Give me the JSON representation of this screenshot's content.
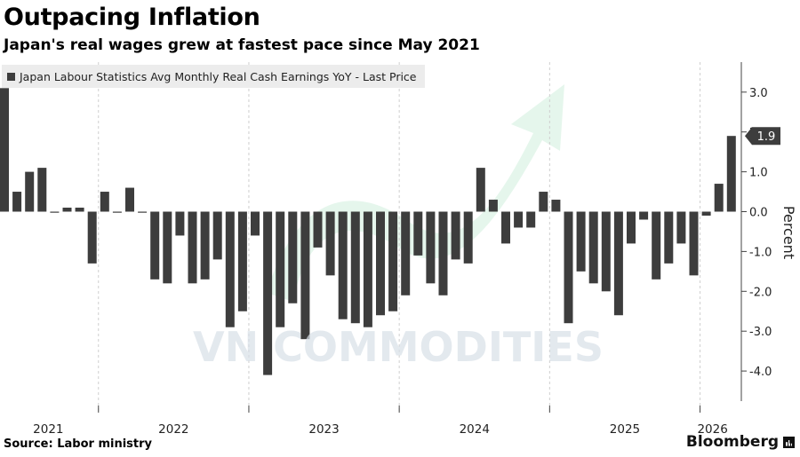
{
  "header": {
    "title": "Outpacing Inflation",
    "subtitle": "Japan's real wages grew at fastest pace since May 2021"
  },
  "legend": {
    "label": "Japan Labour Statistics Avg Monthly Real Cash Earnings YoY - Last Price"
  },
  "footer": {
    "source": "Source: Labor ministry",
    "brand": "Bloomberg"
  },
  "watermark": {
    "text": "VN COMMODITIES"
  },
  "colors": {
    "bar": "#3d3d3d",
    "axis": "#444444",
    "gridline": "#cfcfcf",
    "callout_bg": "#3d3d3d",
    "callout_text": "#ffffff",
    "watermark_text": "#d8e0e8",
    "watermark_arrow": "#cfeedd"
  },
  "chart_data": {
    "type": "bar",
    "title": "Outpacing Inflation",
    "subtitle": "Japan's real wages grew at fastest pace since May 2021",
    "ylabel": "Percent",
    "ylim": [
      -4.6,
      3.5
    ],
    "y_axis_side": "right",
    "y_ticks": [
      3.0,
      2.0,
      1.0,
      0.0,
      -1.0,
      -2.0,
      -3.0,
      -4.0
    ],
    "y_tick_labels": [
      "3.0",
      "2.0",
      "1.0",
      "0.0",
      "-1.0",
      "-2.0",
      "-3.0",
      "-4.0"
    ],
    "x_tick_labels": [
      {
        "label": "2021",
        "index": 3.5
      },
      {
        "label": "2022",
        "index": 13.5
      },
      {
        "label": "2023",
        "index": 25.5
      },
      {
        "label": "2024",
        "index": 37.5
      },
      {
        "label": "2025",
        "index": 49.5
      },
      {
        "label": "2026",
        "index": 56.5
      }
    ],
    "year_separators": [
      7.5,
      19.5,
      31.5,
      43.5,
      55.5
    ],
    "series": [
      {
        "name": "Japan Labour Statistics Avg Monthly Real Cash Earnings YoY - Last Price",
        "values": [
          3.1,
          0.5,
          1.0,
          1.1,
          0.0,
          0.1,
          0.1,
          -1.3,
          0.5,
          0.0,
          0.6,
          0.0,
          -1.7,
          -1.8,
          -0.6,
          -1.8,
          -1.7,
          -1.2,
          -2.9,
          -2.5,
          -0.6,
          -4.1,
          -2.9,
          -2.3,
          -3.2,
          -0.9,
          -1.6,
          -2.7,
          -2.8,
          -2.9,
          -2.6,
          -2.5,
          -2.1,
          -1.1,
          -1.8,
          -2.1,
          -1.2,
          -1.3,
          1.1,
          0.3,
          -0.8,
          -0.4,
          -0.4,
          0.5,
          0.3,
          -2.8,
          -1.5,
          -1.8,
          -2.0,
          -2.6,
          -0.8,
          -0.2,
          -1.7,
          -1.3,
          -0.8,
          -1.6,
          -0.1,
          0.7,
          1.9
        ]
      }
    ],
    "last_value_label": "1.9"
  }
}
